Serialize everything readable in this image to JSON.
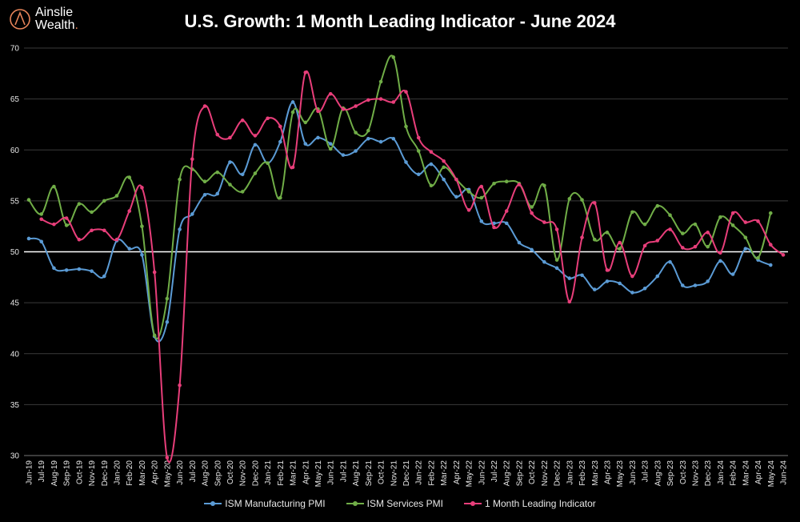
{
  "brand": {
    "line1": "Ainslie",
    "line2": "Wealth",
    "dot": ".",
    "accent": "#e8855a"
  },
  "chart_data": {
    "type": "line",
    "title": "U.S. Growth: 1 Month Leading Indicator - June 2024",
    "xlabel": "",
    "ylabel": "",
    "ylim": [
      30,
      70
    ],
    "yticks": [
      30,
      35,
      40,
      45,
      50,
      55,
      60,
      65,
      70
    ],
    "grid": true,
    "reference_line": 50,
    "legend_position": "bottom",
    "categories": [
      "Jun-19",
      "Jul-19",
      "Aug-19",
      "Sep-19",
      "Oct-19",
      "Nov-19",
      "Dec-19",
      "Jan-20",
      "Feb-20",
      "Mar-20",
      "Apr-20",
      "May-20",
      "Jun-20",
      "Jul-20",
      "Aug-20",
      "Sep-20",
      "Oct-20",
      "Nov-20",
      "Dec-20",
      "Jan-21",
      "Feb-21",
      "Mar-21",
      "Apr-21",
      "May-21",
      "Jun-21",
      "Jul-21",
      "Aug-21",
      "Sep-21",
      "Oct-21",
      "Nov-21",
      "Dec-21",
      "Jan-22",
      "Feb-22",
      "Mar-22",
      "Apr-22",
      "May-22",
      "Jun-22",
      "Jul-22",
      "Aug-22",
      "Sep-22",
      "Oct-22",
      "Nov-22",
      "Dec-22",
      "Jan-23",
      "Feb-23",
      "Mar-23",
      "Apr-23",
      "May-23",
      "Jun-23",
      "Jul-23",
      "Aug-23",
      "Sep-23",
      "Oct-23",
      "Nov-23",
      "Dec-23",
      "Jan-24",
      "Feb-24",
      "Mar-24",
      "Apr-24",
      "May-24",
      "Jun-24"
    ],
    "series": [
      {
        "name": "ISM Manufacturing PMI",
        "color": "#5b9bd5",
        "values": [
          51.3,
          51.0,
          48.4,
          48.2,
          48.3,
          48.1,
          47.6,
          51.1,
          50.3,
          49.7,
          41.7,
          43.1,
          52.2,
          53.7,
          55.6,
          55.7,
          58.8,
          57.6,
          60.5,
          58.7,
          60.8,
          64.7,
          60.6,
          61.2,
          60.6,
          59.5,
          59.9,
          61.1,
          60.8,
          61.1,
          58.8,
          57.6,
          58.6,
          57.1,
          55.4,
          56.1,
          53.0,
          52.8,
          52.8,
          50.9,
          50.2,
          49.0,
          48.4,
          47.4,
          47.7,
          46.3,
          47.1,
          46.9,
          46.0,
          46.4,
          47.6,
          49.0,
          46.7,
          46.7,
          47.1,
          49.1,
          47.8,
          50.3,
          49.2,
          48.7,
          null
        ]
      },
      {
        "name": "ISM Services PMI",
        "color": "#70ad47",
        "values": [
          55.1,
          53.7,
          56.4,
          52.6,
          54.7,
          53.9,
          55.0,
          55.5,
          57.3,
          52.5,
          41.8,
          45.4,
          57.1,
          58.1,
          56.9,
          57.8,
          56.6,
          55.9,
          57.7,
          58.7,
          55.3,
          63.7,
          62.7,
          64.0,
          60.1,
          64.1,
          61.7,
          61.9,
          66.7,
          69.1,
          62.3,
          59.9,
          56.5,
          58.3,
          57.1,
          55.9,
          55.3,
          56.7,
          56.9,
          56.7,
          54.4,
          56.5,
          49.2,
          55.2,
          55.1,
          51.2,
          51.9,
          50.3,
          53.9,
          52.7,
          54.5,
          53.6,
          51.8,
          52.7,
          50.5,
          53.4,
          52.6,
          51.4,
          49.4,
          53.8,
          null
        ]
      },
      {
        "name": "1 Month Leading Indicator",
        "color": "#e83e7a",
        "values": [
          null,
          53.2,
          52.7,
          53.3,
          51.2,
          52.1,
          52.1,
          51.2,
          54.0,
          56.3,
          48.0,
          29.8,
          36.9,
          59.1,
          64.3,
          61.5,
          61.2,
          62.9,
          61.4,
          63.1,
          62.3,
          58.3,
          67.6,
          63.8,
          65.5,
          64.0,
          64.3,
          64.9,
          65.0,
          64.7,
          65.7,
          61.2,
          59.8,
          58.9,
          57.1,
          54.1,
          56.4,
          52.4,
          54.0,
          56.6,
          53.8,
          52.9,
          52.2,
          45.1,
          51.4,
          54.8,
          48.2,
          50.9,
          47.6,
          50.6,
          51.1,
          52.2,
          50.4,
          50.5,
          51.9,
          49.9,
          53.8,
          52.9,
          53.0,
          50.7,
          49.7
        ]
      }
    ]
  },
  "legend": {
    "items": [
      {
        "label": "ISM Manufacturing PMI",
        "color": "#5b9bd5"
      },
      {
        "label": "ISM Services PMI",
        "color": "#70ad47"
      },
      {
        "label": "1 Month Leading Indicator",
        "color": "#e83e7a"
      }
    ]
  }
}
